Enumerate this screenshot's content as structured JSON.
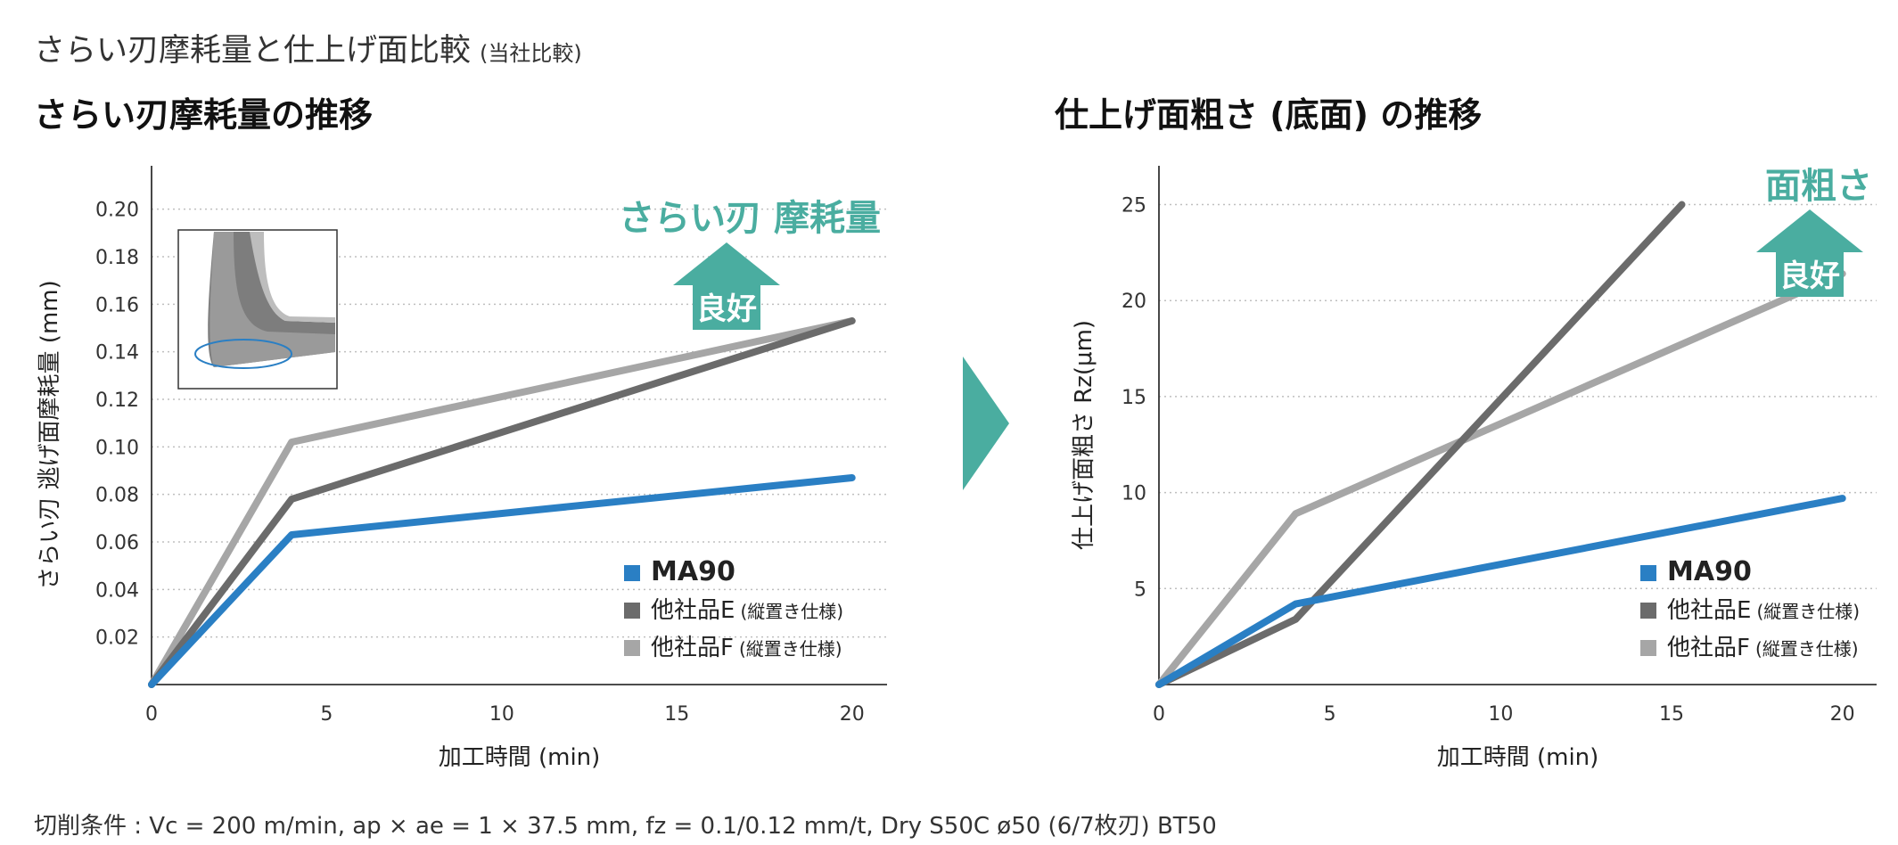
{
  "header": {
    "title": "さらい刃摩耗量と仕上げ面比較",
    "subtitle": "(当社比較)"
  },
  "footer": {
    "text": "切削条件 : Vc = 200 m/min, ap × ae = 1 × 37.5 mm, fz = 0.1/0.12 mm/t, Dry  S50C  ø50 (6/7枚刃)  BT50"
  },
  "colors": {
    "accent": "#4aada0",
    "ma90": "#2a7fc4",
    "companyE": "#6b6b6b",
    "companyF": "#a6a6a6"
  },
  "chart_data": [
    {
      "type": "line",
      "title": "さらい刃摩耗量の推移",
      "xlabel": "加工時間 (min)",
      "ylabel": "さらい刃 逃げ面摩耗量 (mm)",
      "xlim": [
        0,
        21
      ],
      "ylim": [
        0,
        0.21
      ],
      "xticks": [
        0,
        5,
        10,
        15,
        20
      ],
      "xtick_labels": [
        "0",
        "5",
        "10",
        "15",
        "20"
      ],
      "yticks": [
        0.02,
        0.04,
        0.06,
        0.08,
        0.1,
        0.12,
        0.14,
        0.16,
        0.18,
        0.2
      ],
      "ytick_labels": [
        "0.02",
        "0.04",
        "0.06",
        "0.08",
        "0.10",
        "0.12",
        "0.14",
        "0.16",
        "0.18",
        "0.20"
      ],
      "grid": true,
      "legend_position": "bottom-right",
      "annotation": {
        "label": "さらい刃 摩耗量",
        "arrow_text": "良好"
      },
      "series": [
        {
          "name": "MA90",
          "color": "#2a7fc4",
          "x": [
            0,
            4,
            20
          ],
          "y": [
            0,
            0.063,
            0.087
          ]
        },
        {
          "name": "他社品E",
          "legend_note": "(縦置き仕様)",
          "color": "#6b6b6b",
          "x": [
            0,
            4,
            20
          ],
          "y": [
            0,
            0.078,
            0.153
          ]
        },
        {
          "name": "他社品F",
          "legend_note": "(縦置き仕様)",
          "color": "#a6a6a6",
          "x": [
            0,
            4,
            20
          ],
          "y": [
            0,
            0.102,
            0.153
          ]
        }
      ]
    },
    {
      "type": "line",
      "title": "仕上げ面粗さ (底面) の推移",
      "xlabel": "加工時間 (min)",
      "ylabel": "仕上げ面粗さ Rz(μm)",
      "xlim": [
        0,
        21
      ],
      "ylim": [
        0,
        26
      ],
      "xticks": [
        0,
        5,
        10,
        15,
        20
      ],
      "xtick_labels": [
        "0",
        "5",
        "10",
        "15",
        "20"
      ],
      "yticks": [
        5,
        10,
        15,
        20,
        25
      ],
      "ytick_labels": [
        "5",
        "10",
        "15",
        "20",
        "25"
      ],
      "grid": true,
      "legend_position": "bottom-right",
      "annotation": {
        "label": "面粗さ",
        "arrow_text": "良好"
      },
      "series": [
        {
          "name": "MA90",
          "color": "#2a7fc4",
          "x": [
            0,
            4,
            20
          ],
          "y": [
            0,
            4.2,
            9.7
          ]
        },
        {
          "name": "他社品E",
          "legend_note": "(縦置き仕様)",
          "color": "#6b6b6b",
          "x": [
            0,
            4,
            15.3
          ],
          "y": [
            0,
            3.4,
            25.0
          ]
        },
        {
          "name": "他社品F",
          "legend_note": "(縦置き仕様)",
          "color": "#a6a6a6",
          "x": [
            0,
            4,
            20
          ],
          "y": [
            0,
            8.9,
            21.4
          ]
        }
      ]
    }
  ]
}
